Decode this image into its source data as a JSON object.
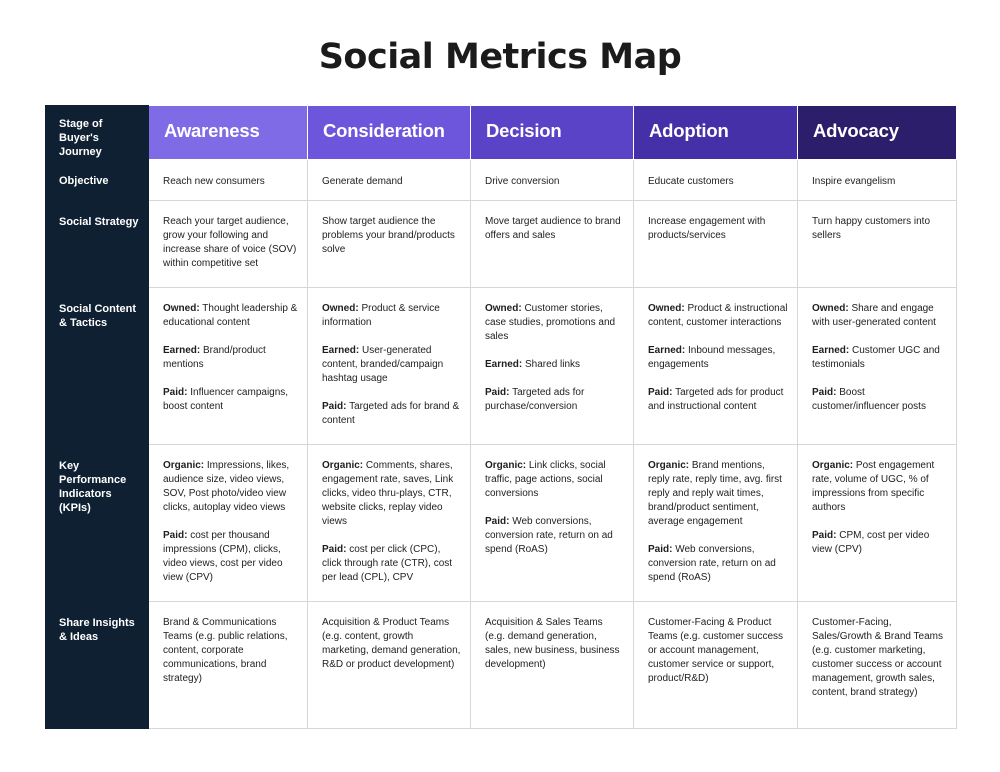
{
  "title": "Social Metrics Map",
  "corner_label": "Stage of Buyer's Journey",
  "stages": [
    {
      "label": "Awareness",
      "color": "#7f6be6"
    },
    {
      "label": "Consideration",
      "color": "#6d56dc"
    },
    {
      "label": "Decision",
      "color": "#5a43c6"
    },
    {
      "label": "Adoption",
      "color": "#4630a8"
    },
    {
      "label": "Advocacy",
      "color": "#2c1e6b"
    }
  ],
  "rows": {
    "objective": {
      "label": "Objective",
      "cells": [
        "Reach new consumers",
        "Generate demand",
        "Drive conversion",
        "Educate customers",
        "Inspire evangelism"
      ]
    },
    "strategy": {
      "label": "Social Strategy",
      "cells": [
        "Reach your target audience, grow your following and increase share of voice (SOV) within competitive set",
        "Show target audience the problems your brand/products solve",
        "Move target audience to brand offers and sales",
        "Increase engagement with products/services",
        "Turn happy customers into sellers"
      ]
    },
    "tactics": {
      "label": "Social Content & Tactics",
      "prefix_owned": "Owned:",
      "prefix_earned": "Earned:",
      "prefix_paid": "Paid:",
      "cells": [
        {
          "owned": "Thought leadership & educational content",
          "earned": "Brand/product mentions",
          "paid": "Influencer campaigns, boost content"
        },
        {
          "owned": "Product & service information",
          "earned": "User-generated content, branded/campaign hashtag usage",
          "paid": "Targeted ads for brand & content"
        },
        {
          "owned": "Customer stories, case studies, promotions and sales",
          "earned": "Shared links",
          "paid": "Targeted ads for purchase/conversion"
        },
        {
          "owned": "Product & instructional content, customer interactions",
          "earned": "Inbound messages, engagements",
          "paid": "Targeted ads for product and instructional content"
        },
        {
          "owned": "Share and engage with user-generated content",
          "earned": "Customer UGC and testimonials",
          "paid": "Boost customer/influencer posts"
        }
      ]
    },
    "kpis": {
      "label": "Key Performance Indicators (KPIs)",
      "prefix_organic": "Organic:",
      "prefix_paid": "Paid:",
      "cells": [
        {
          "organic": "Impressions, likes, audience size, video views, SOV, Post photo/video view clicks, autoplay video views",
          "paid": "cost per thousand impressions (CPM), clicks, video views, cost per video view (CPV)"
        },
        {
          "organic": "Comments, shares, engagement rate, saves, Link clicks, video thru-plays, CTR, website clicks, replay video views",
          "paid": "cost per click (CPC), click through rate (CTR), cost per lead (CPL), CPV"
        },
        {
          "organic": "Link clicks, social traffic, page actions, social conversions",
          "paid": "Web conversions, conversion rate, return on ad spend (RoAS)"
        },
        {
          "organic": "Brand mentions, reply rate, reply time, avg. first reply and reply wait times, brand/product sentiment, average engagement",
          "paid": "Web conversions, conversion rate, return on ad spend (RoAS)"
        },
        {
          "organic": "Post engagement rate, volume of UGC, % of impressions from specific authors",
          "paid": "CPM, cost per video view (CPV)"
        }
      ]
    },
    "share": {
      "label": "Share Insights & Ideas",
      "cells": [
        "Brand & Communications Teams (e.g. public relations, content, corporate communications, brand strategy)",
        "Acquisition & Product Teams (e.g. content, growth marketing, demand generation, R&D or product development)",
        "Acquisition & Sales Teams (e.g. demand generation, sales, new business, business development)",
        "Customer-Facing & Product Teams (e.g. customer success or account management, customer service or support, product/R&D)",
        "Customer-Facing, Sales/Growth & Brand Teams (e.g. customer marketing, customer success or account management, growth sales, content, brand strategy)"
      ]
    }
  }
}
